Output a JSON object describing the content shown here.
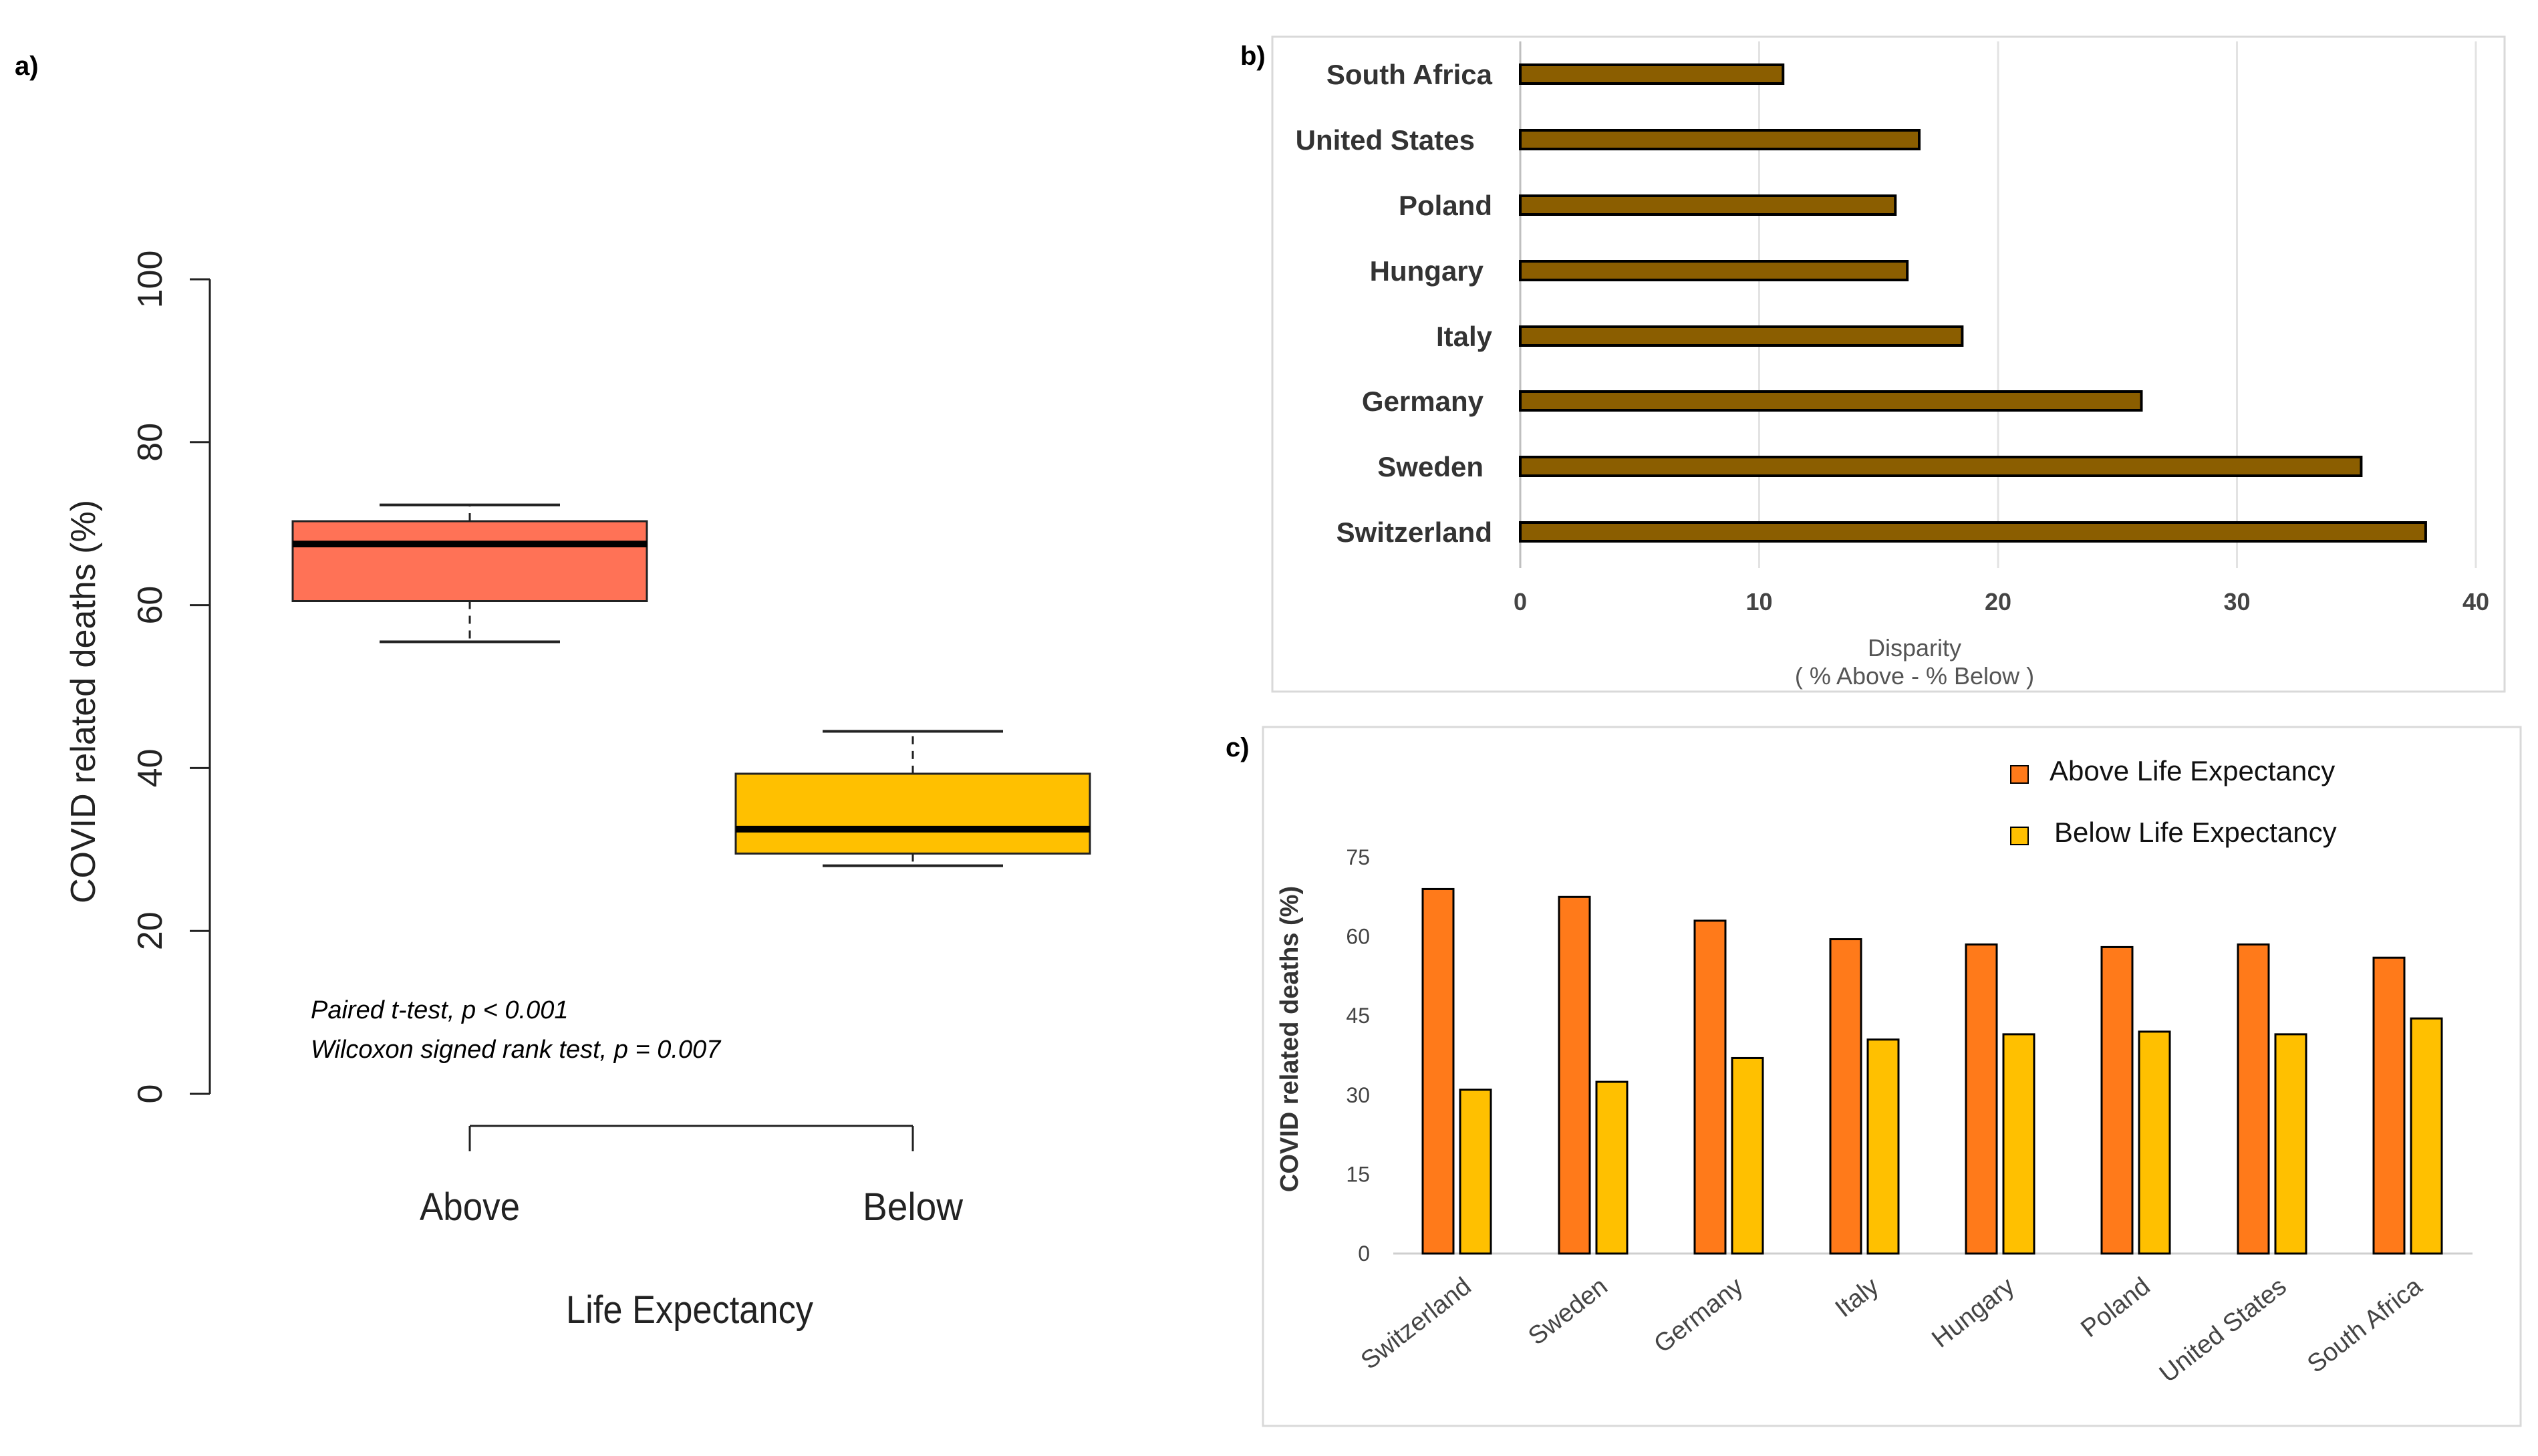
{
  "panel_labels": {
    "a": "a)",
    "b": "b)",
    "c": "c)"
  },
  "colors": {
    "above": "#FF7256",
    "below": "#FFC000",
    "disparity": "#8B5E00",
    "c_above": "#FF7A1A",
    "c_below": "#FFC000"
  },
  "chart_data": [
    {
      "id": "a",
      "type": "box",
      "title": "",
      "xlabel": "Life Expectancy",
      "ylabel": "COVID related deaths (%)",
      "ylim": [
        0,
        100
      ],
      "yticks": [
        0,
        20,
        40,
        60,
        80,
        100
      ],
      "categories": [
        "Above",
        "Below"
      ],
      "boxes": [
        {
          "name": "Above",
          "min": 55.5,
          "q1": 60.5,
          "median": 67.5,
          "q3": 70.3,
          "max": 72.3
        },
        {
          "name": "Below",
          "min": 28.0,
          "q1": 29.5,
          "median": 32.5,
          "q3": 39.3,
          "max": 44.5
        }
      ],
      "annotation_t_test": "Paired t-test, p < 0.001",
      "annotation_wilcoxon": "Wilcoxon signed rank test,  p = 0.007"
    },
    {
      "id": "b",
      "type": "bar",
      "orientation": "horizontal",
      "xlabel": "Disparity",
      "xlabel_sub": "( % Above - % Below )",
      "xlim": [
        0,
        40
      ],
      "xticks": [
        0,
        10,
        20,
        30,
        40
      ],
      "categories": [
        "South Africa",
        "United States",
        "Poland",
        "Hungary",
        "Italy",
        "Germany",
        "Sweden",
        "Switzerland"
      ],
      "values": [
        11.0,
        16.7,
        15.7,
        16.2,
        18.5,
        26.0,
        35.2,
        37.9
      ]
    },
    {
      "id": "c",
      "type": "bar",
      "orientation": "vertical",
      "ylabel": "COVID related deaths (%)",
      "ylim": [
        0,
        75
      ],
      "yticks": [
        0,
        15,
        30,
        45,
        60,
        75
      ],
      "categories": [
        "Switzerland",
        "Sweden",
        "Germany",
        "Italy",
        "Hungary",
        "Poland",
        "United States",
        "South Africa"
      ],
      "series": [
        {
          "name": "Above Life Expectancy",
          "values": [
            69,
            67.5,
            63,
            59.5,
            58.5,
            58,
            58.5,
            56
          ]
        },
        {
          "name": "Below Life Expectancy",
          "values": [
            31,
            32.5,
            37,
            40.5,
            41.5,
            42,
            41.5,
            44.5
          ]
        }
      ]
    }
  ]
}
